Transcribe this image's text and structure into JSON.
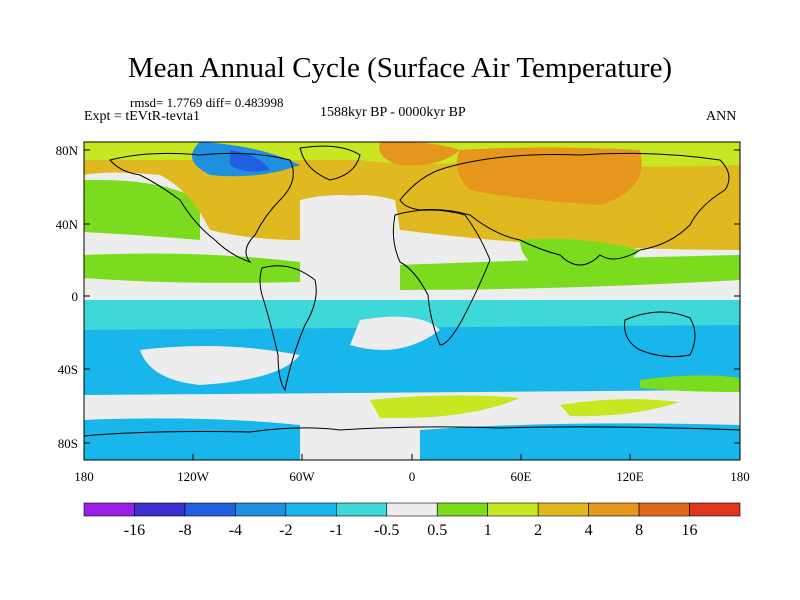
{
  "title": "Mean Annual Cycle (Surface Air Temperature)",
  "stats": "rmsd= 1.7769 diff= 0.483998",
  "experiment": "Expt = tEVtR-tevta1",
  "period": "1588kyr BP - 0000kyr BP",
  "season": "ANN",
  "lat_labels": [
    "80N",
    "40N",
    "0",
    "40S",
    "80S"
  ],
  "lon_labels": [
    "180",
    "120W",
    "60W",
    "0",
    "60E",
    "120E",
    "180"
  ],
  "colorbar": {
    "labels": [
      "-16",
      "-8",
      "-4",
      "-2",
      "-1",
      "-0.5",
      "0.5",
      "1",
      "2",
      "4",
      "8",
      "16"
    ],
    "colors": [
      "#9B1FE6",
      "#3A2FD0",
      "#1F5FE0",
      "#1F8FE0",
      "#18B6EA",
      "#3ED8D8",
      "#EDEDED",
      "#7ADB1F",
      "#C8E622",
      "#E0B81F",
      "#E6961C",
      "#E0661B",
      "#E0361A"
    ]
  },
  "palette": {
    "neutral": "#EDEDED",
    "cyan": "#18B6EA",
    "lightblue": "#3ED8D8",
    "blue": "#1F8FE0",
    "deepblue": "#1F5FE0",
    "green": "#7ADB1F",
    "yellowgreen": "#C8E622",
    "gold": "#E0B81F",
    "orange": "#E6961C",
    "darkorange": "#E0661B"
  }
}
